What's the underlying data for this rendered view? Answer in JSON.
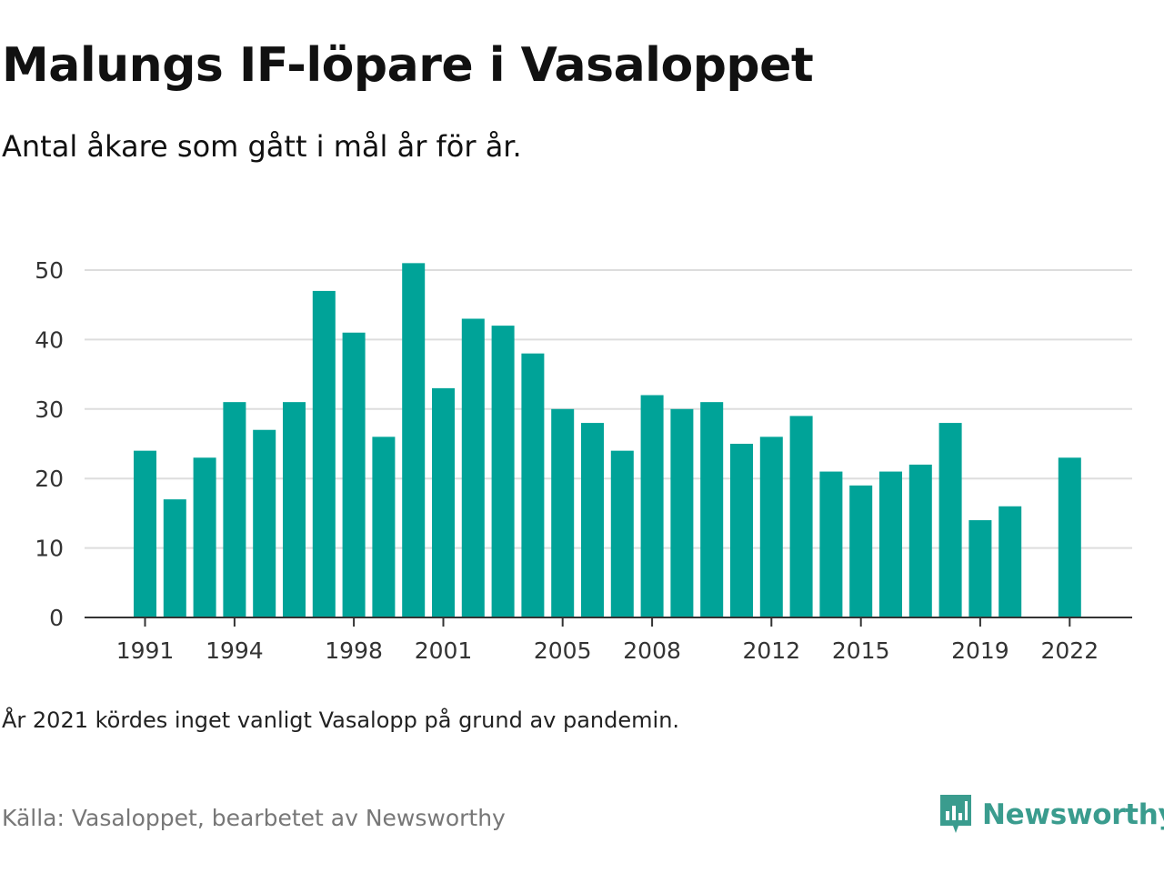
{
  "header": {
    "title": "Malungs IF-löpare i Vasaloppet",
    "subtitle": "Antal åkare som gått i mål år för år."
  },
  "footer": {
    "note": "År 2021 kördes inget vanligt Vasalopp på grund av pandemin.",
    "source": "Källa: Vasaloppet, bearbetet av Newsworthy",
    "brand_name": "Newsworthy",
    "brand_icon": "newsworthy-logo-icon"
  },
  "colors": {
    "bar": "#00a398",
    "grid": "#dddddd",
    "axis": "#333333",
    "brand": "#3a9c8e"
  },
  "chart_data": {
    "type": "bar",
    "title": "Malungs IF-löpare i Vasaloppet",
    "subtitle": "Antal åkare som gått i mål år för år.",
    "xlabel": "",
    "ylabel": "",
    "ylim": [
      0,
      50
    ],
    "yticks": [
      0,
      10,
      20,
      30,
      40,
      50
    ],
    "xticks": [
      "1991",
      "1994",
      "1998",
      "2001",
      "2005",
      "2008",
      "2012",
      "2015",
      "2019",
      "2022"
    ],
    "grid": true,
    "categories": [
      "1991",
      "1992",
      "1993",
      "1994",
      "1995",
      "1996",
      "1997",
      "1998",
      "1999",
      "2000",
      "2001",
      "2002",
      "2003",
      "2004",
      "2005",
      "2006",
      "2007",
      "2008",
      "2009",
      "2010",
      "2011",
      "2012",
      "2013",
      "2014",
      "2015",
      "2016",
      "2017",
      "2018",
      "2019",
      "2020",
      "2021",
      "2022"
    ],
    "values": [
      24,
      17,
      23,
      31,
      27,
      31,
      47,
      41,
      26,
      51,
      33,
      43,
      42,
      38,
      30,
      28,
      24,
      32,
      30,
      31,
      25,
      26,
      29,
      21,
      19,
      21,
      22,
      28,
      14,
      16,
      null,
      23
    ]
  }
}
